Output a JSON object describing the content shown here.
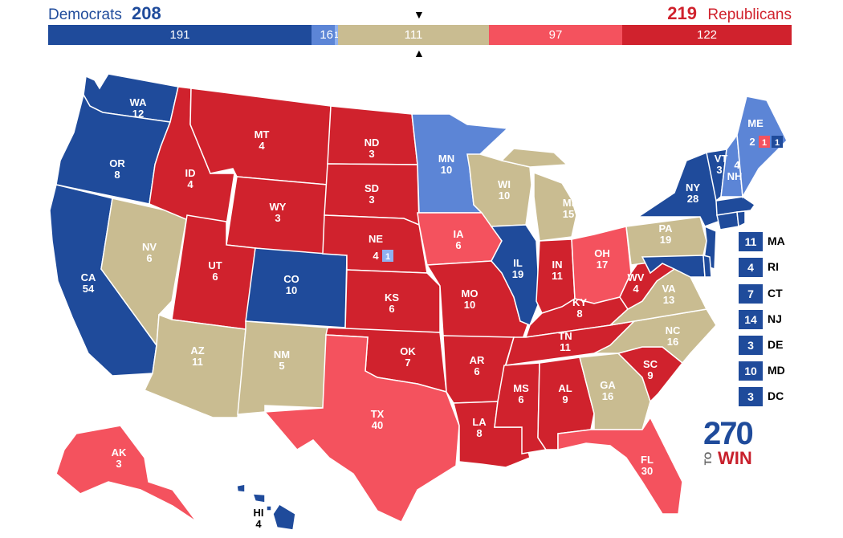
{
  "header": {
    "dem_label": "Democrats",
    "dem_total": "208",
    "rep_total": "219",
    "rep_label": "Republicans"
  },
  "colors": {
    "safe_dem": "#1f4b9b",
    "lean_dem": "#5c85d6",
    "tossup": "#c9bc91",
    "lean_rep": "#f4525e",
    "safe_rep": "#d0222d"
  },
  "bar_segments": [
    {
      "value": "191",
      "category": "safe_dem"
    },
    {
      "value": "16",
      "category": "lean_dem"
    },
    {
      "value": "111",
      "category": "tossup"
    },
    {
      "value": "97",
      "category": "lean_rep"
    },
    {
      "value": "122",
      "category": "safe_rep"
    }
  ],
  "bar_extra_labels": [
    "1"
  ],
  "states": {
    "WA": {
      "abbr": "WA",
      "ev": "12",
      "category": "safe_dem"
    },
    "OR": {
      "abbr": "OR",
      "ev": "8",
      "category": "safe_dem"
    },
    "CA": {
      "abbr": "CA",
      "ev": "54",
      "category": "safe_dem"
    },
    "NV": {
      "abbr": "NV",
      "ev": "6",
      "category": "tossup"
    },
    "ID": {
      "abbr": "ID",
      "ev": "4",
      "category": "safe_rep"
    },
    "MT": {
      "abbr": "MT",
      "ev": "4",
      "category": "safe_rep"
    },
    "WY": {
      "abbr": "WY",
      "ev": "3",
      "category": "safe_rep"
    },
    "UT": {
      "abbr": "UT",
      "ev": "6",
      "category": "safe_rep"
    },
    "AZ": {
      "abbr": "AZ",
      "ev": "11",
      "category": "tossup"
    },
    "CO": {
      "abbr": "CO",
      "ev": "10",
      "category": "safe_dem"
    },
    "NM": {
      "abbr": "NM",
      "ev": "5",
      "category": "tossup"
    },
    "ND": {
      "abbr": "ND",
      "ev": "3",
      "category": "safe_rep"
    },
    "SD": {
      "abbr": "SD",
      "ev": "3",
      "category": "safe_rep"
    },
    "NE": {
      "abbr": "NE",
      "ev": "4",
      "extra": "1",
      "category": "safe_rep"
    },
    "KS": {
      "abbr": "KS",
      "ev": "6",
      "category": "safe_rep"
    },
    "OK": {
      "abbr": "OK",
      "ev": "7",
      "category": "safe_rep"
    },
    "TX": {
      "abbr": "TX",
      "ev": "40",
      "category": "lean_rep"
    },
    "MN": {
      "abbr": "MN",
      "ev": "10",
      "category": "lean_dem"
    },
    "IA": {
      "abbr": "IA",
      "ev": "6",
      "category": "lean_rep"
    },
    "MO": {
      "abbr": "MO",
      "ev": "10",
      "category": "safe_rep"
    },
    "AR": {
      "abbr": "AR",
      "ev": "6",
      "category": "safe_rep"
    },
    "LA": {
      "abbr": "LA",
      "ev": "8",
      "category": "safe_rep"
    },
    "WI": {
      "abbr": "WI",
      "ev": "10",
      "category": "tossup"
    },
    "IL": {
      "abbr": "IL",
      "ev": "19",
      "category": "safe_dem"
    },
    "MI": {
      "abbr": "MI",
      "ev": "15",
      "category": "tossup"
    },
    "IN": {
      "abbr": "IN",
      "ev": "11",
      "category": "safe_rep"
    },
    "OH": {
      "abbr": "OH",
      "ev": "17",
      "category": "lean_rep"
    },
    "KY": {
      "abbr": "KY",
      "ev": "8",
      "category": "safe_rep"
    },
    "TN": {
      "abbr": "TN",
      "ev": "11",
      "category": "safe_rep"
    },
    "MS": {
      "abbr": "MS",
      "ev": "6",
      "category": "safe_rep"
    },
    "AL": {
      "abbr": "AL",
      "ev": "9",
      "category": "safe_rep"
    },
    "GA": {
      "abbr": "GA",
      "ev": "16",
      "category": "tossup"
    },
    "FL": {
      "abbr": "FL",
      "ev": "30",
      "category": "lean_rep"
    },
    "SC": {
      "abbr": "SC",
      "ev": "9",
      "category": "safe_rep"
    },
    "NC": {
      "abbr": "NC",
      "ev": "16",
      "category": "tossup"
    },
    "VA": {
      "abbr": "VA",
      "ev": "13",
      "category": "tossup"
    },
    "WV": {
      "abbr": "WV",
      "ev": "4",
      "category": "safe_rep"
    },
    "PA": {
      "abbr": "PA",
      "ev": "19",
      "category": "tossup"
    },
    "NY": {
      "abbr": "NY",
      "ev": "28",
      "category": "safe_dem"
    },
    "VT": {
      "abbr": "VT",
      "ev": "3",
      "category": "safe_dem"
    },
    "NH": {
      "abbr": "NH",
      "ev": "4",
      "category": "lean_dem"
    },
    "ME": {
      "abbr": "ME",
      "ev": "2",
      "cd1": "1",
      "cd2": "1",
      "category": "lean_dem"
    },
    "AK": {
      "abbr": "AK",
      "ev": "3",
      "category": "lean_rep"
    },
    "HI": {
      "abbr": "HI",
      "ev": "4",
      "category": "safe_dem"
    }
  },
  "small_states": [
    {
      "abbr": "MA",
      "ev": "11",
      "category": "safe_dem"
    },
    {
      "abbr": "RI",
      "ev": "4",
      "category": "safe_dem"
    },
    {
      "abbr": "CT",
      "ev": "7",
      "category": "safe_dem"
    },
    {
      "abbr": "NJ",
      "ev": "14",
      "category": "safe_dem"
    },
    {
      "abbr": "DE",
      "ev": "3",
      "category": "safe_dem"
    },
    {
      "abbr": "MD",
      "ev": "10",
      "category": "safe_dem"
    },
    {
      "abbr": "DC",
      "ev": "3",
      "category": "safe_dem"
    }
  ],
  "logo": {
    "number": "270",
    "to": "TO",
    "win": "WIN"
  }
}
